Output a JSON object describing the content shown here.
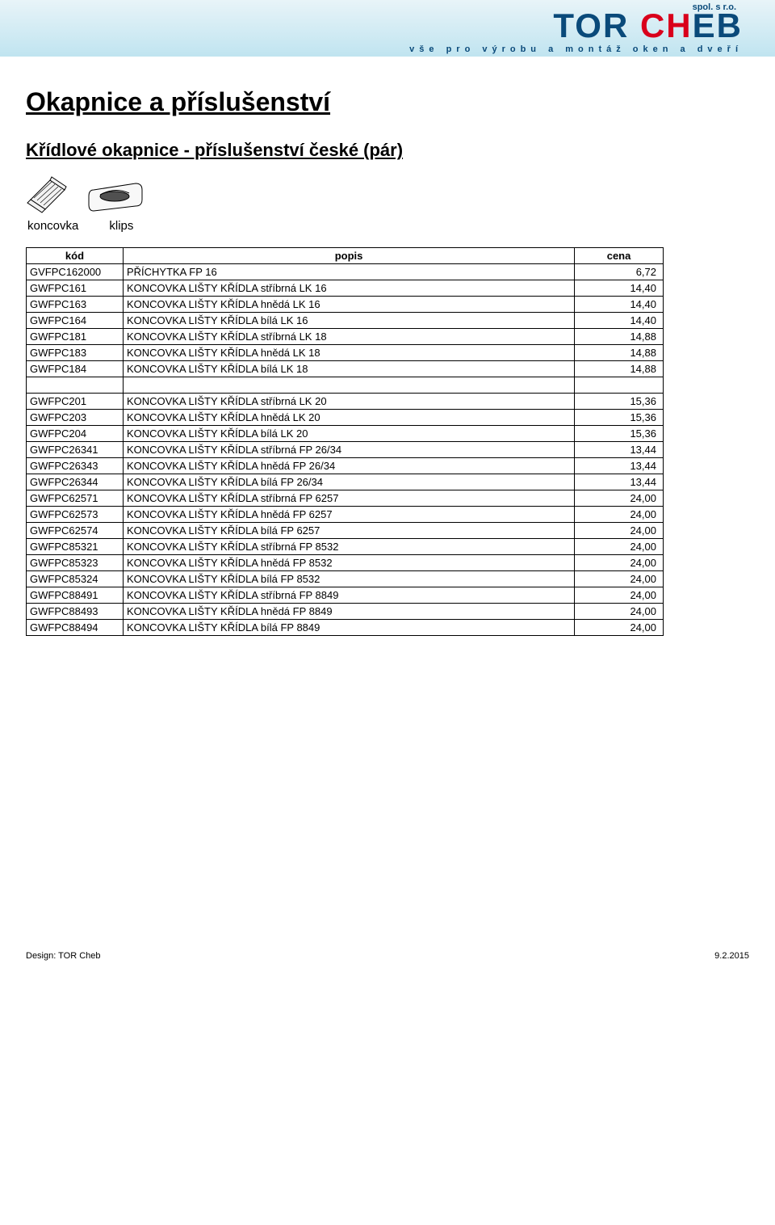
{
  "banner": {
    "spol": "spol. s r.o.",
    "logo_a": "TOR ",
    "logo_b": "CH",
    "logo_c": "EB",
    "tagline": "vše pro výrobu a montáž oken a dveří",
    "bg_gradient_top": "#e8f4f8",
    "bg_gradient_bottom": "#c0e4f0",
    "logo_color": "#0a4a7a",
    "highlight_color": "#d9001b"
  },
  "page_title": "Okapnice a příslušenství",
  "section_title": "Křídlové okapnice - příslušenství české (pár)",
  "icon_labels": {
    "a": "koncovka",
    "b": "klips"
  },
  "table": {
    "headers": {
      "code": "kód",
      "desc": "popis",
      "price": "cena"
    },
    "groups": [
      [
        {
          "code": "GVFPC162000",
          "desc": "PŘÍCHYTKA FP 16",
          "price": "6,72"
        },
        {
          "code": "GWFPC161",
          "desc": "KONCOVKA LIŠTY KŘÍDLA stříbrná LK 16",
          "price": "14,40"
        },
        {
          "code": "GWFPC163",
          "desc": "KONCOVKA LIŠTY KŘÍDLA hnědá LK 16",
          "price": "14,40"
        },
        {
          "code": "GWFPC164",
          "desc": "KONCOVKA LIŠTY KŘÍDLA bílá LK 16",
          "price": "14,40"
        },
        {
          "code": "GWFPC181",
          "desc": "KONCOVKA LIŠTY KŘÍDLA stříbrná LK 18",
          "price": "14,88"
        },
        {
          "code": "GWFPC183",
          "desc": "KONCOVKA LIŠTY KŘÍDLA hnědá LK 18",
          "price": "14,88"
        },
        {
          "code": "GWFPC184",
          "desc": "KONCOVKA LIŠTY KŘÍDLA bílá LK 18",
          "price": "14,88"
        }
      ],
      [
        {
          "code": "GWFPC201",
          "desc": "KONCOVKA LIŠTY KŘÍDLA stříbrná LK 20",
          "price": "15,36"
        },
        {
          "code": "GWFPC203",
          "desc": "KONCOVKA LIŠTY KŘÍDLA hnědá LK 20",
          "price": "15,36"
        },
        {
          "code": "GWFPC204",
          "desc": "KONCOVKA LIŠTY KŘÍDLA bílá LK 20",
          "price": "15,36"
        },
        {
          "code": "GWFPC26341",
          "desc": "KONCOVKA LIŠTY KŘÍDLA stříbrná FP 26/34",
          "price": "13,44"
        },
        {
          "code": "GWFPC26343",
          "desc": "KONCOVKA LIŠTY KŘÍDLA hnědá FP 26/34",
          "price": "13,44"
        },
        {
          "code": "GWFPC26344",
          "desc": "KONCOVKA LIŠTY KŘÍDLA bílá FP 26/34",
          "price": "13,44"
        },
        {
          "code": "GWFPC62571",
          "desc": "KONCOVKA LIŠTY KŘÍDLA stříbrná FP 6257",
          "price": "24,00"
        },
        {
          "code": "GWFPC62573",
          "desc": "KONCOVKA LIŠTY KŘÍDLA hnědá FP 6257",
          "price": "24,00"
        },
        {
          "code": "GWFPC62574",
          "desc": "KONCOVKA LIŠTY KŘÍDLA bílá FP 6257",
          "price": "24,00"
        },
        {
          "code": "GWFPC85321",
          "desc": "KONCOVKA LIŠTY KŘÍDLA stříbrná FP 8532",
          "price": "24,00"
        },
        {
          "code": "GWFPC85323",
          "desc": "KONCOVKA LIŠTY KŘÍDLA hnědá FP 8532",
          "price": "24,00"
        },
        {
          "code": "GWFPC85324",
          "desc": "KONCOVKA LIŠTY KŘÍDLA bílá FP 8532",
          "price": "24,00"
        },
        {
          "code": "GWFPC88491",
          "desc": "KONCOVKA LIŠTY KŘÍDLA stříbrná FP 8849",
          "price": "24,00"
        },
        {
          "code": "GWFPC88493",
          "desc": "KONCOVKA LIŠTY KŘÍDLA hnědá FP 8849",
          "price": "24,00"
        },
        {
          "code": "GWFPC88494",
          "desc": "KONCOVKA LIŠTY KŘÍDLA bílá FP 8849",
          "price": "24,00"
        }
      ]
    ]
  },
  "footer": {
    "left": "Design: TOR Cheb",
    "right": "9.2.2015"
  }
}
